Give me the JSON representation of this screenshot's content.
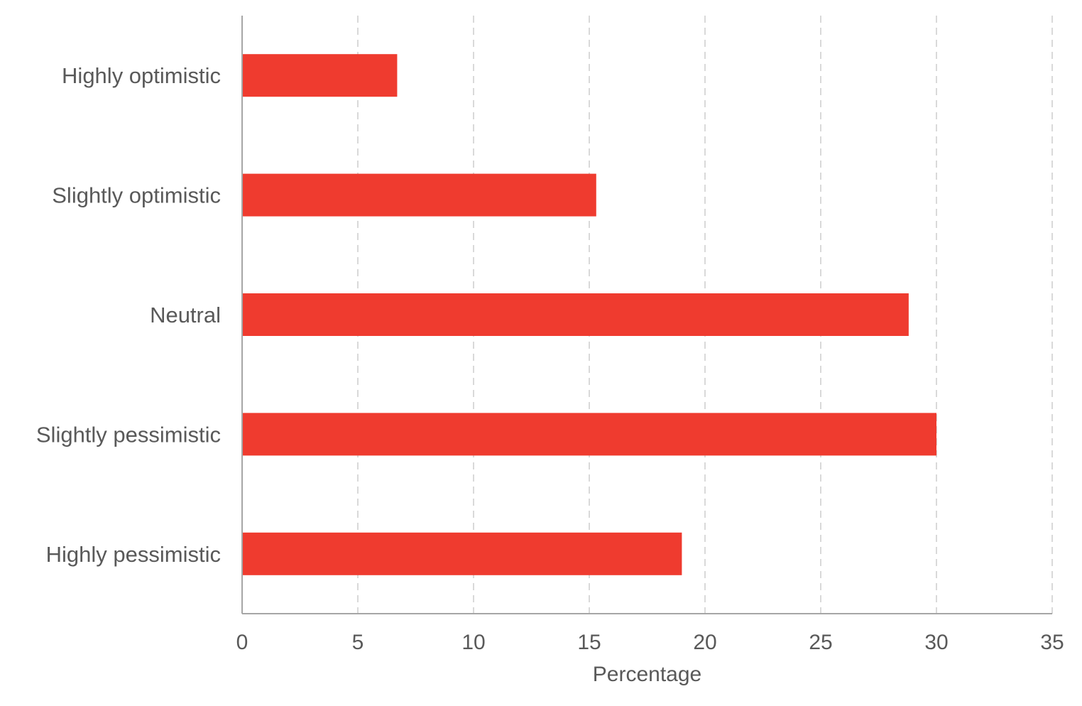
{
  "chart_data": {
    "type": "bar",
    "orientation": "horizontal",
    "categories": [
      "Highly optimistic",
      "Slightly optimistic",
      "Neutral",
      "Slightly pessimistic",
      "Highly pessimistic"
    ],
    "values": [
      6.7,
      15.3,
      28.8,
      30.0,
      19.0
    ],
    "xlabel": "Percentage",
    "ylabel": "",
    "xlim": [
      0,
      35
    ],
    "xticks": [
      "0",
      "5",
      "10",
      "15",
      "20",
      "25",
      "30",
      "35"
    ],
    "grid": "vertical dashed",
    "legend": "none",
    "bar_color": "#EF3B2F",
    "grid_color": "#D9D9D9",
    "axis_color": "#A6A6A6",
    "text_color": "#595959"
  }
}
